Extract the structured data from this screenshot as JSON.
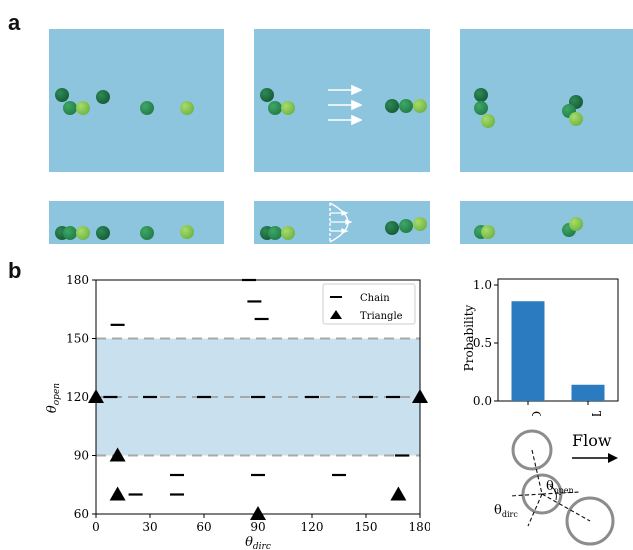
{
  "figure": {
    "panel_a_letter": "a",
    "panel_b_letter": "b"
  },
  "colors": {
    "water": "#8ec5de",
    "sphere_dark": "#0f5a33",
    "sphere_mid": "#1e8a48",
    "sphere_light": "#7bc144",
    "band": "#c9e0ee",
    "bar": "#2a7bbf"
  },
  "scatter": {
    "xlabel": "θdirc",
    "ylabel": "θopen",
    "legend": [
      "Chain",
      "Triangle"
    ],
    "x_ticks": [
      "0",
      "30",
      "60",
      "90",
      "120",
      "150",
      "180"
    ],
    "y_ticks": [
      "60",
      "90",
      "120",
      "150",
      "180"
    ]
  },
  "chart_data": [
    {
      "type": "scatter",
      "xlabel": "θdirc",
      "ylabel": "θopen",
      "xlim": [
        0,
        180
      ],
      "ylim": [
        60,
        180
      ],
      "series": [
        {
          "name": "Chain",
          "marker": "dash",
          "points": [
            [
              12,
              157
            ],
            [
              85,
              180
            ],
            [
              88,
              169
            ],
            [
              92,
              160
            ],
            [
              8,
              120
            ],
            [
              30,
              120
            ],
            [
              60,
              120
            ],
            [
              90,
              120
            ],
            [
              120,
              120
            ],
            [
              150,
              120
            ],
            [
              165,
              120
            ],
            [
              170,
              90
            ],
            [
              45,
              80
            ],
            [
              90,
              80
            ],
            [
              135,
              80
            ],
            [
              22,
              70
            ],
            [
              45,
              70
            ]
          ]
        },
        {
          "name": "Triangle",
          "marker": "triangle",
          "points": [
            [
              0,
              120
            ],
            [
              180,
              120
            ],
            [
              12,
              90
            ],
            [
              12,
              70
            ],
            [
              168,
              70
            ],
            [
              90,
              60
            ]
          ]
        }
      ],
      "band": [
        90,
        150
      ],
      "dashed_lines": [
        90,
        120,
        150
      ],
      "legend_position": "top-right",
      "grid": false
    },
    {
      "type": "bar",
      "categories": [
        "C",
        "T"
      ],
      "values": [
        0.86,
        0.14
      ],
      "ylabel": "Probability",
      "ylim": [
        0,
        1.0
      ],
      "y_ticks": [
        "0.0",
        "0.5",
        "1.0"
      ]
    }
  ],
  "schematic": {
    "flow_label": "Flow",
    "theta_open_label": "θopen",
    "theta_dirc_label": "θdirc"
  }
}
